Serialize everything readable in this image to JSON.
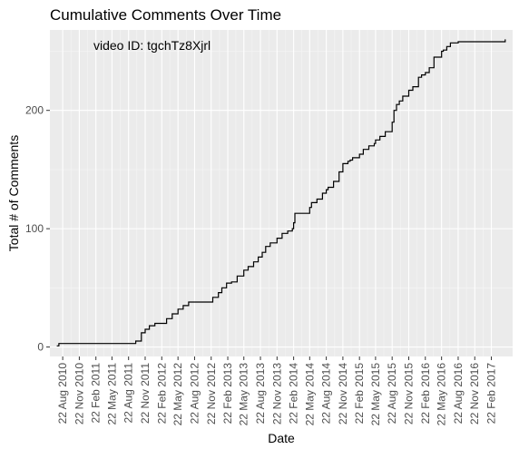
{
  "chart_data": {
    "type": "line",
    "step": true,
    "title": "Cumulative Comments Over Time",
    "xlabel": "Date",
    "ylabel": "Total # of Comments",
    "annotation": "video ID: tgchTz8Xjrl",
    "ylim": [
      -8,
      268
    ],
    "xlim": [
      "2010-06-12",
      "2017-06-20"
    ],
    "y_ticks": [
      0,
      100,
      200
    ],
    "x_ticks": [
      "22 Aug 2010",
      "22 Nov 2010",
      "22 Feb 2011",
      "22 May 2011",
      "22 Aug 2011",
      "22 Nov 2011",
      "22 Feb 2012",
      "22 May 2012",
      "22 Aug 2012",
      "22 Nov 2012",
      "22 Feb 2013",
      "22 May 2013",
      "22 Aug 2013",
      "22 Nov 2013",
      "22 Feb 2014",
      "22 May 2014",
      "22 Aug 2014",
      "22 Nov 2014",
      "22 Feb 2015",
      "22 May 2015",
      "22 Aug 2015",
      "22 Nov 2015",
      "22 Feb 2016",
      "22 May 2016",
      "22 Aug 2016",
      "22 Nov 2016",
      "22 Feb 2017"
    ],
    "x_tick_dates": [
      "2010-08-22",
      "2010-11-22",
      "2011-02-22",
      "2011-05-22",
      "2011-08-22",
      "2011-11-22",
      "2012-02-22",
      "2012-05-22",
      "2012-08-22",
      "2012-11-22",
      "2013-02-22",
      "2013-05-22",
      "2013-08-22",
      "2013-11-22",
      "2014-02-22",
      "2014-05-22",
      "2014-08-22",
      "2014-11-22",
      "2015-02-22",
      "2015-05-22",
      "2015-08-22",
      "2015-11-22",
      "2016-02-22",
      "2016-05-22",
      "2016-08-22",
      "2016-11-22",
      "2017-02-22"
    ],
    "grid": true,
    "legend": "none",
    "colors": {
      "panel": "#ebebeb",
      "grid_major": "#ffffff",
      "grid_minor": "#f5f5f5",
      "line": "#000000"
    },
    "series": [
      {
        "x": [
          "2010-07-20",
          "2010-08-01",
          "2010-08-22",
          "2011-08-22",
          "2011-10-01",
          "2011-11-01",
          "2011-11-22",
          "2011-12-15",
          "2012-01-15",
          "2012-02-15",
          "2012-03-20",
          "2012-04-20",
          "2012-05-22",
          "2012-06-20",
          "2012-07-20",
          "2012-09-01",
          "2012-11-01",
          "2012-12-01",
          "2013-01-01",
          "2013-01-20",
          "2013-02-15",
          "2013-03-15",
          "2013-04-15",
          "2013-05-22",
          "2013-06-15",
          "2013-07-15",
          "2013-08-10",
          "2013-09-01",
          "2013-09-20",
          "2013-10-15",
          "2013-11-22",
          "2013-12-20",
          "2014-01-20",
          "2014-02-15",
          "2014-02-22",
          "2014-03-01",
          "2014-04-01",
          "2014-05-22",
          "2014-06-01",
          "2014-07-01",
          "2014-08-01",
          "2014-08-22",
          "2014-09-01",
          "2014-10-01",
          "2014-11-01",
          "2014-11-22",
          "2014-12-20",
          "2015-01-01",
          "2015-01-15",
          "2015-02-22",
          "2015-03-15",
          "2015-04-15",
          "2015-05-15",
          "2015-05-22",
          "2015-06-15",
          "2015-07-15",
          "2015-08-22",
          "2015-09-01",
          "2015-09-15",
          "2015-10-01",
          "2015-10-20",
          "2015-11-22",
          "2015-12-15",
          "2016-01-15",
          "2016-02-01",
          "2016-02-22",
          "2016-03-15",
          "2016-04-10",
          "2016-05-22",
          "2016-06-01",
          "2016-06-20",
          "2016-07-10",
          "2016-08-22",
          "2016-09-15",
          "2016-10-15",
          "2016-12-01",
          "2017-02-22",
          "2017-04-15",
          "2017-05-10"
        ],
        "values": [
          1,
          3,
          3,
          3,
          5,
          12,
          15,
          18,
          20,
          20,
          24,
          28,
          32,
          35,
          38,
          38,
          38,
          42,
          46,
          50,
          54,
          55,
          60,
          65,
          68,
          72,
          76,
          80,
          85,
          88,
          92,
          96,
          98,
          100,
          105,
          113,
          113,
          118,
          122,
          125,
          130,
          133,
          135,
          140,
          148,
          155,
          157,
          158,
          160,
          163,
          167,
          170,
          172,
          175,
          178,
          182,
          190,
          200,
          205,
          208,
          212,
          217,
          220,
          228,
          230,
          232,
          236,
          245,
          250,
          251,
          254,
          257,
          258,
          258,
          258,
          258,
          258,
          258,
          260
        ]
      }
    ]
  }
}
